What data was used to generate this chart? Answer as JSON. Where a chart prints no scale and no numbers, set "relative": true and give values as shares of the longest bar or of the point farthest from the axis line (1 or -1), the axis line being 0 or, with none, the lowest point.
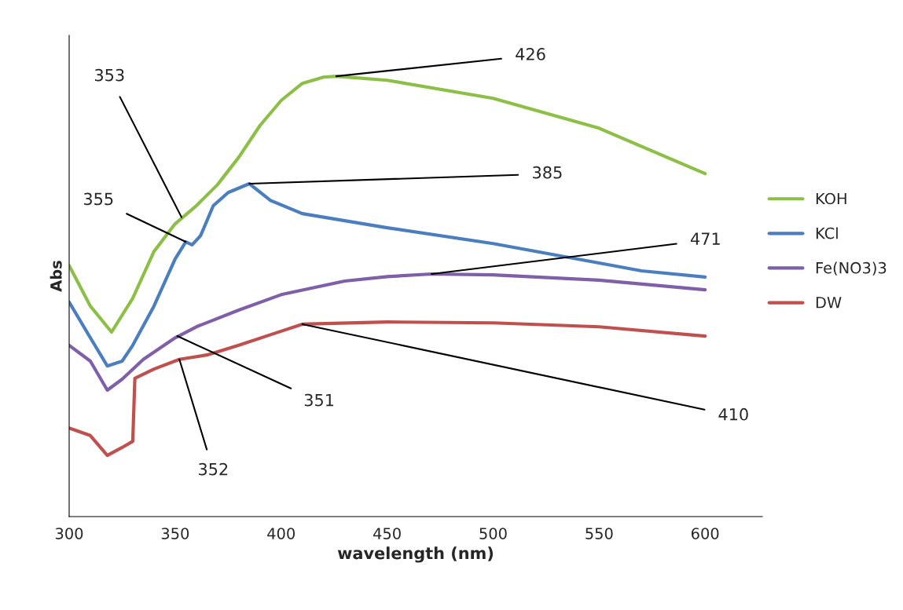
{
  "chart_data": {
    "type": "line",
    "relative": true,
    "xlabel": "wavelength (nm)",
    "ylabel": "Abs",
    "xlim": [
      300,
      627
    ],
    "xticks": [
      300,
      350,
      400,
      450,
      500,
      550,
      600
    ],
    "grid": false,
    "legend": "right",
    "marker": "none",
    "line_style": "solid",
    "series": [
      {
        "name": "KOH",
        "color": "#8cbf45",
        "x": [
          300,
          310,
          320,
          330,
          340,
          350,
          360,
          370,
          380,
          390,
          400,
          410,
          420,
          426,
          450,
          500,
          550,
          600
        ],
        "values": [
          0.57,
          0.478,
          0.419,
          0.496,
          0.602,
          0.665,
          0.706,
          0.754,
          0.816,
          0.888,
          0.945,
          0.984,
          0.998,
          1.0,
          0.991,
          0.95,
          0.882,
          0.779
        ]
      },
      {
        "name": "KCl",
        "color": "#4a7ebf",
        "x": [
          300,
          310,
          318,
          325,
          330,
          340,
          350,
          355,
          358,
          362,
          368,
          375,
          385,
          395,
          410,
          450,
          500,
          550,
          570,
          600
        ],
        "values": [
          0.487,
          0.406,
          0.342,
          0.353,
          0.389,
          0.478,
          0.585,
          0.624,
          0.617,
          0.638,
          0.706,
          0.736,
          0.756,
          0.718,
          0.688,
          0.656,
          0.62,
          0.576,
          0.558,
          0.544
        ]
      },
      {
        "name": "Fe(NO3)3",
        "color": "#7f5fa8",
        "x": [
          300,
          310,
          318,
          325,
          335,
          350,
          360,
          380,
          400,
          430,
          450,
          471,
          500,
          550,
          600
        ],
        "values": [
          0.389,
          0.353,
          0.287,
          0.312,
          0.357,
          0.406,
          0.431,
          0.469,
          0.504,
          0.535,
          0.545,
          0.551,
          0.549,
          0.537,
          0.515
        ]
      },
      {
        "name": "DW",
        "color": "#c0504d",
        "x": [
          300,
          310,
          318,
          325,
          330,
          331,
          340,
          352,
          365,
          380,
          400,
          410,
          450,
          500,
          550,
          600
        ],
        "values": [
          0.201,
          0.184,
          0.139,
          0.157,
          0.171,
          0.314,
          0.335,
          0.357,
          0.367,
          0.389,
          0.421,
          0.437,
          0.442,
          0.44,
          0.431,
          0.41
        ]
      }
    ],
    "annotations": [
      {
        "text": "426",
        "x": 426,
        "y": 1.0
      },
      {
        "text": "353",
        "x": 353,
        "y": 0.68
      },
      {
        "text": "385",
        "x": 385,
        "y": 0.756
      },
      {
        "text": "355",
        "x": 355,
        "y": 0.624
      },
      {
        "text": "471",
        "x": 471,
        "y": 0.551
      },
      {
        "text": "351",
        "x": 351,
        "y": 0.41
      },
      {
        "text": "410",
        "x": 410,
        "y": 0.437
      },
      {
        "text": "352",
        "x": 352,
        "y": 0.357
      }
    ]
  }
}
